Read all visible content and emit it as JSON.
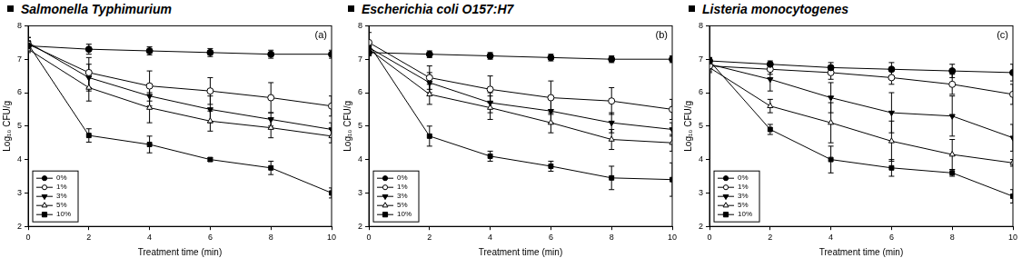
{
  "chart_data": [
    {
      "type": "line",
      "title": "Salmonella Typhimurium",
      "panel_label": "(a)",
      "x_label": "Treatment time (min)",
      "y_label": "Log₁₀ CFU/g",
      "x": [
        0,
        2,
        4,
        6,
        8,
        10
      ],
      "xlim": [
        0,
        10
      ],
      "xticks": [
        0,
        2,
        4,
        6,
        8,
        10
      ],
      "ylim": [
        2,
        8
      ],
      "yticks": [
        2,
        3,
        4,
        5,
        6,
        7,
        8
      ],
      "grid": false,
      "legend": "lower left",
      "series": [
        {
          "name": "0%",
          "color": "#000000",
          "marker": "circle",
          "values": [
            7.4,
            7.3,
            7.25,
            7.2,
            7.15,
            7.15
          ],
          "errors": [
            0.1,
            0.15,
            0.12,
            0.12,
            0.12,
            0.12
          ]
        },
        {
          "name": "1%",
          "color": "#000000",
          "marker": "circle-open",
          "values": [
            7.45,
            6.6,
            6.2,
            6.05,
            5.85,
            5.6
          ],
          "errors": [
            0.2,
            0.45,
            0.45,
            0.4,
            0.45,
            0.3
          ]
        },
        {
          "name": "3%",
          "color": "#000000",
          "marker": "triangle-down",
          "values": [
            7.5,
            6.45,
            5.9,
            5.5,
            5.2,
            4.9
          ],
          "errors": [
            0.15,
            0.4,
            0.3,
            0.4,
            0.2,
            0.2
          ]
        },
        {
          "name": "5%",
          "color": "#000000",
          "marker": "triangle-open",
          "values": [
            7.3,
            6.15,
            5.55,
            5.15,
            4.95,
            4.7
          ],
          "errors": [
            0.1,
            0.4,
            0.45,
            0.3,
            0.3,
            0.2
          ]
        },
        {
          "name": "10%",
          "color": "#000000",
          "marker": "square",
          "values": [
            7.45,
            4.72,
            4.45,
            4.0,
            3.75,
            3.0
          ],
          "errors": [
            0.1,
            0.2,
            0.25,
            0.05,
            0.2,
            0.15
          ]
        }
      ]
    },
    {
      "type": "line",
      "title": "Escherichia coli O157:H7",
      "panel_label": "(b)",
      "x_label": "Treatment time (min)",
      "y_label": "Log₁₀ CFU/g",
      "x": [
        0,
        2,
        4,
        6,
        8,
        10
      ],
      "xlim": [
        0,
        10
      ],
      "xticks": [
        0,
        2,
        4,
        6,
        8,
        10
      ],
      "ylim": [
        2,
        8
      ],
      "yticks": [
        2,
        3,
        4,
        5,
        6,
        7,
        8
      ],
      "grid": false,
      "legend": "lower left",
      "series": [
        {
          "name": "0%",
          "color": "#000000",
          "marker": "circle",
          "values": [
            7.2,
            7.15,
            7.1,
            7.05,
            7.0,
            7.0
          ],
          "errors": [
            0.1,
            0.1,
            0.1,
            0.1,
            0.1,
            0.1
          ]
        },
        {
          "name": "1%",
          "color": "#000000",
          "marker": "circle-open",
          "values": [
            7.5,
            6.45,
            6.1,
            5.85,
            5.75,
            5.5
          ],
          "errors": [
            0.3,
            0.35,
            0.4,
            0.5,
            0.4,
            0.3
          ]
        },
        {
          "name": "3%",
          "color": "#000000",
          "marker": "triangle-down",
          "values": [
            7.35,
            6.3,
            5.7,
            5.45,
            5.1,
            4.9
          ],
          "errors": [
            0.2,
            0.3,
            0.3,
            0.35,
            0.3,
            0.2
          ]
        },
        {
          "name": "5%",
          "color": "#000000",
          "marker": "triangle-open",
          "values": [
            7.3,
            5.95,
            5.55,
            5.1,
            4.6,
            4.5
          ],
          "errors": [
            0.15,
            0.3,
            0.35,
            0.3,
            0.3,
            0.25
          ]
        },
        {
          "name": "10%",
          "color": "#000000",
          "marker": "square",
          "values": [
            7.45,
            4.7,
            4.1,
            3.8,
            3.45,
            3.4
          ],
          "errors": [
            0.1,
            0.3,
            0.15,
            0.15,
            0.35,
            0.5
          ]
        }
      ]
    },
    {
      "type": "line",
      "title": "Listeria monocytogenes",
      "panel_label": "(c)",
      "x_label": "Treatment time (min)",
      "y_label": "Log₁₀ CFU/g",
      "x": [
        0,
        2,
        4,
        6,
        8,
        10
      ],
      "xlim": [
        0,
        10
      ],
      "xticks": [
        0,
        2,
        4,
        6,
        8,
        10
      ],
      "ylim": [
        2,
        8
      ],
      "yticks": [
        2,
        3,
        4,
        5,
        6,
        7,
        8
      ],
      "grid": false,
      "legend": "lower left",
      "series": [
        {
          "name": "0%",
          "color": "#000000",
          "marker": "circle",
          "values": [
            6.95,
            6.85,
            6.75,
            6.7,
            6.65,
            6.6
          ],
          "errors": [
            0.1,
            0.1,
            0.15,
            0.2,
            0.2,
            0.25
          ]
        },
        {
          "name": "1%",
          "color": "#000000",
          "marker": "circle-open",
          "values": [
            6.8,
            6.7,
            6.6,
            6.45,
            6.25,
            5.95
          ],
          "errors": [
            0.15,
            0.15,
            0.2,
            0.2,
            0.3,
            0.3
          ]
        },
        {
          "name": "3%",
          "color": "#000000",
          "marker": "triangle-down",
          "values": [
            6.85,
            6.4,
            5.85,
            5.4,
            5.3,
            4.65
          ],
          "errors": [
            0.1,
            0.35,
            0.45,
            0.6,
            0.6,
            0.4
          ]
        },
        {
          "name": "5%",
          "color": "#000000",
          "marker": "triangle-open",
          "values": [
            6.75,
            5.6,
            5.1,
            4.55,
            4.15,
            3.9
          ],
          "errors": [
            0.15,
            0.2,
            0.6,
            0.6,
            0.45,
            0.1
          ]
        },
        {
          "name": "10%",
          "color": "#000000",
          "marker": "square",
          "values": [
            6.95,
            4.9,
            4.0,
            3.75,
            3.6,
            2.9
          ],
          "errors": [
            0.1,
            0.15,
            0.4,
            0.25,
            0.1,
            0.2
          ]
        }
      ]
    }
  ]
}
